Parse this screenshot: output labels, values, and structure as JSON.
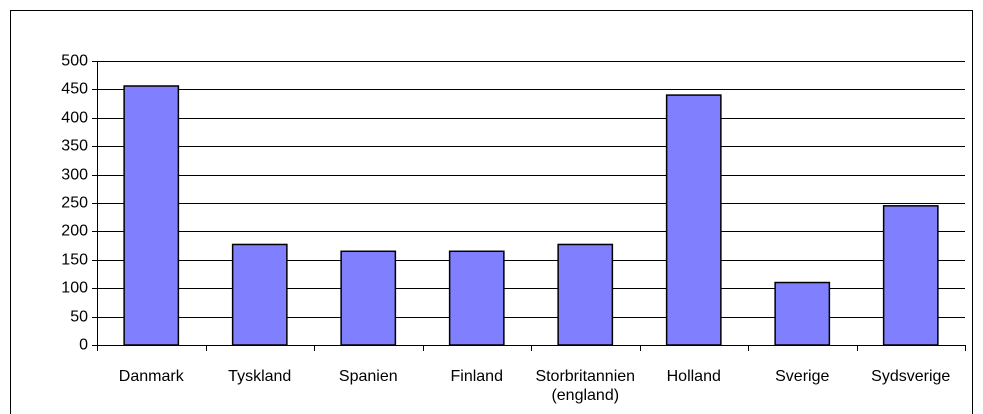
{
  "chart_data": {
    "type": "bar",
    "categories": [
      "Danmark",
      "Tyskland",
      "Spanien",
      "Finland",
      "Storbritannien (england)",
      "Holland",
      "Sverige",
      "Sydsverige"
    ],
    "values": [
      456,
      177,
      165,
      165,
      177,
      440,
      110,
      245
    ],
    "color": "#8080ff",
    "ylim": [
      0,
      500
    ],
    "yticks": [
      0,
      50,
      100,
      150,
      200,
      250,
      300,
      350,
      400,
      450,
      500
    ],
    "grid": true
  }
}
